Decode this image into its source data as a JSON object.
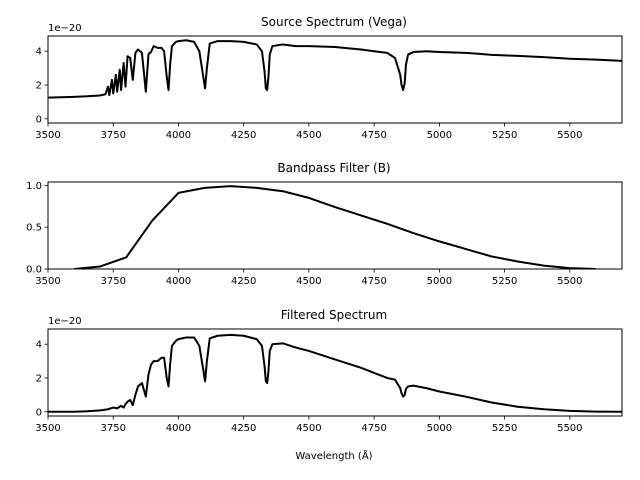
{
  "chart_data": [
    {
      "type": "line",
      "title": "Source Spectrum (Vega)",
      "xlabel": "",
      "ylabel": "",
      "y_offset_text": "1e−20",
      "xlim": [
        3500,
        5700
      ],
      "ylim": [
        -0.25,
        4.9
      ],
      "xticks": [
        3500,
        3750,
        4000,
        4250,
        4500,
        4750,
        5000,
        5250,
        5500
      ],
      "xtick_labels": [
        "3500",
        "3750",
        "4000",
        "4250",
        "4500",
        "4750",
        "5000",
        "5250",
        "5500"
      ],
      "yticks": [
        0,
        2,
        4
      ],
      "ytick_labels": [
        "0",
        "2",
        "4"
      ],
      "grid": false,
      "series": [
        {
          "color": "#000000",
          "x": [
            3500,
            3600,
            3650,
            3700,
            3720,
            3730,
            3735,
            3745,
            3750,
            3760,
            3765,
            3775,
            3780,
            3790,
            3797,
            3805,
            3815,
            3825,
            3835,
            3845,
            3860,
            3875,
            3885,
            3889,
            3893,
            3905,
            3920,
            3935,
            3945,
            3955,
            3962,
            3968,
            3975,
            3990,
            4000,
            4030,
            4060,
            4080,
            4095,
            4102,
            4109,
            4120,
            4150,
            4200,
            4250,
            4300,
            4320,
            4330,
            4335,
            4340,
            4345,
            4350,
            4360,
            4400,
            4450,
            4500,
            4600,
            4700,
            4750,
            4800,
            4830,
            4850,
            4855,
            4861,
            4867,
            4872,
            4880,
            4900,
            4950,
            5000,
            5100,
            5150,
            5200,
            5250,
            5300,
            5400,
            5500,
            5600,
            5700
          ],
          "y": [
            1.25,
            1.3,
            1.33,
            1.38,
            1.45,
            1.9,
            1.4,
            2.3,
            1.5,
            2.6,
            1.6,
            2.9,
            1.7,
            3.3,
            1.9,
            3.7,
            3.6,
            2.3,
            3.9,
            4.1,
            3.9,
            1.6,
            3.8,
            3.9,
            3.9,
            4.3,
            4.2,
            4.2,
            4.0,
            2.5,
            1.7,
            3.2,
            4.3,
            4.55,
            4.6,
            4.65,
            4.55,
            4.0,
            2.5,
            1.8,
            3.0,
            4.45,
            4.6,
            4.6,
            4.55,
            4.4,
            4.0,
            2.8,
            1.8,
            1.7,
            2.5,
            3.8,
            4.3,
            4.4,
            4.3,
            4.3,
            4.25,
            4.1,
            4.0,
            3.9,
            3.6,
            2.6,
            2.0,
            1.7,
            2.1,
            3.2,
            3.8,
            3.95,
            4.0,
            3.95,
            3.9,
            3.85,
            3.78,
            3.75,
            3.72,
            3.65,
            3.55,
            3.5,
            3.43
          ]
        }
      ]
    },
    {
      "type": "line",
      "title": "Bandpass Filter (B)",
      "xlabel": "",
      "ylabel": "",
      "xlim": [
        3500,
        5700
      ],
      "ylim": [
        0,
        1.04
      ],
      "xticks": [
        3500,
        3750,
        4000,
        4250,
        4500,
        4750,
        5000,
        5250,
        5500
      ],
      "xtick_labels": [
        "3500",
        "3750",
        "4000",
        "4250",
        "4500",
        "4750",
        "5000",
        "5250",
        "5500"
      ],
      "yticks": [
        0,
        0.5,
        1
      ],
      "ytick_labels": [
        "0.0",
        "0.5",
        "1.0"
      ],
      "grid": false,
      "series": [
        {
          "color": "#000000",
          "x": [
            3600,
            3700,
            3800,
            3900,
            4000,
            4100,
            4200,
            4300,
            4400,
            4500,
            4600,
            4700,
            4800,
            4900,
            5000,
            5100,
            5200,
            5300,
            5400,
            5500,
            5600
          ],
          "y": [
            0.0,
            0.03,
            0.14,
            0.58,
            0.91,
            0.97,
            0.99,
            0.97,
            0.93,
            0.85,
            0.74,
            0.64,
            0.54,
            0.43,
            0.33,
            0.24,
            0.15,
            0.09,
            0.04,
            0.01,
            0.0
          ]
        }
      ]
    },
    {
      "type": "line",
      "title": "Filtered Spectrum",
      "xlabel": "Wavelength (Å)",
      "ylabel": "",
      "y_offset_text": "1e−20",
      "xlim": [
        3500,
        5700
      ],
      "ylim": [
        -0.25,
        4.9
      ],
      "xticks": [
        3500,
        3750,
        4000,
        4250,
        4500,
        4750,
        5000,
        5250,
        5500
      ],
      "xtick_labels": [
        "3500",
        "3750",
        "4000",
        "4250",
        "4500",
        "4750",
        "5000",
        "5250",
        "5500"
      ],
      "yticks": [
        0,
        2,
        4
      ],
      "ytick_labels": [
        "0",
        "2",
        "4"
      ],
      "grid": false,
      "series": [
        {
          "color": "#000000",
          "x": [
            3500,
            3600,
            3650,
            3700,
            3730,
            3750,
            3765,
            3780,
            3790,
            3797,
            3805,
            3815,
            3825,
            3835,
            3845,
            3860,
            3875,
            3885,
            3895,
            3905,
            3920,
            3935,
            3945,
            3955,
            3962,
            3968,
            3975,
            3990,
            4000,
            4030,
            4060,
            4080,
            4095,
            4102,
            4109,
            4120,
            4150,
            4200,
            4250,
            4300,
            4320,
            4330,
            4335,
            4340,
            4345,
            4350,
            4360,
            4400,
            4450,
            4500,
            4600,
            4700,
            4750,
            4800,
            4830,
            4850,
            4855,
            4861,
            4867,
            4872,
            4880,
            4900,
            4950,
            5000,
            5100,
            5200,
            5300,
            5400,
            5500,
            5600,
            5700
          ],
          "y": [
            0.0,
            0.0,
            0.03,
            0.08,
            0.15,
            0.25,
            0.2,
            0.35,
            0.25,
            0.45,
            0.6,
            0.7,
            0.4,
            1.0,
            1.5,
            1.7,
            0.9,
            2.2,
            2.8,
            3.0,
            3.0,
            3.2,
            3.2,
            2.0,
            1.5,
            2.8,
            3.9,
            4.2,
            4.3,
            4.4,
            4.4,
            3.9,
            2.5,
            1.8,
            3.0,
            4.35,
            4.5,
            4.55,
            4.5,
            4.3,
            3.9,
            2.7,
            1.8,
            1.7,
            2.4,
            3.6,
            4.0,
            4.05,
            3.8,
            3.6,
            3.1,
            2.6,
            2.3,
            2.0,
            1.9,
            1.4,
            1.1,
            0.9,
            1.0,
            1.35,
            1.5,
            1.55,
            1.4,
            1.2,
            0.9,
            0.55,
            0.3,
            0.15,
            0.05,
            0.01,
            0.0
          ]
        }
      ]
    }
  ]
}
